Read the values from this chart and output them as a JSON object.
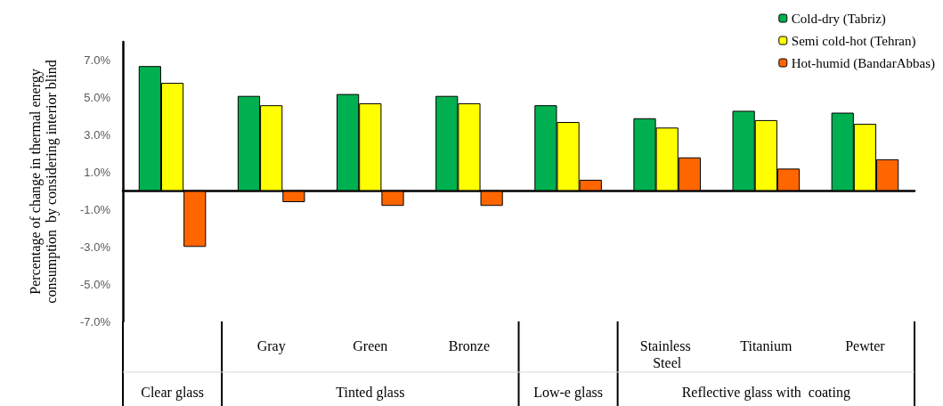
{
  "chart_data": {
    "type": "bar",
    "ylabel": "Percentage of change in thermal energy\nconsumption  by considering interior blind",
    "categories": [
      null,
      "Gray",
      "Green",
      "Bronze",
      null,
      "Stainless Steel",
      "Titanium",
      "Pewter"
    ],
    "series": [
      {
        "name": "Cold-dry (Tabriz)",
        "color": "#00b050",
        "values": [
          6.7,
          5.1,
          5.2,
          5.1,
          4.6,
          3.9,
          4.3,
          4.2
        ]
      },
      {
        "name": "Semi cold-hot (Tehran)",
        "color": "#ffff00",
        "values": [
          5.8,
          4.6,
          4.7,
          4.7,
          3.7,
          3.4,
          3.8,
          3.6
        ]
      },
      {
        "name": "Hot-humid (BandarAbbas)",
        "color": "#ff6600",
        "values": [
          -3.0,
          -0.6,
          -0.8,
          -0.8,
          0.6,
          1.8,
          1.2,
          1.7
        ]
      }
    ],
    "annotations": [
      "Clear glass",
      "Tinted glass",
      "Low-e glass",
      "Reflective glass with  coating"
    ],
    "ylim": [
      -7,
      8
    ],
    "yticks": [
      {
        "value": -7,
        "label": "-7.0%"
      },
      {
        "value": -5,
        "label": "-5.0%"
      },
      {
        "value": -3,
        "label": "-3.0%"
      },
      {
        "value": -1,
        "label": "-1.0%"
      },
      {
        "value": 1,
        "label": "1.0%"
      },
      {
        "value": 3,
        "label": "3.0%"
      },
      {
        "value": 5,
        "label": "5.0%"
      },
      {
        "value": 7,
        "label": "7.0%"
      }
    ],
    "grid": false,
    "legend": "top right"
  }
}
